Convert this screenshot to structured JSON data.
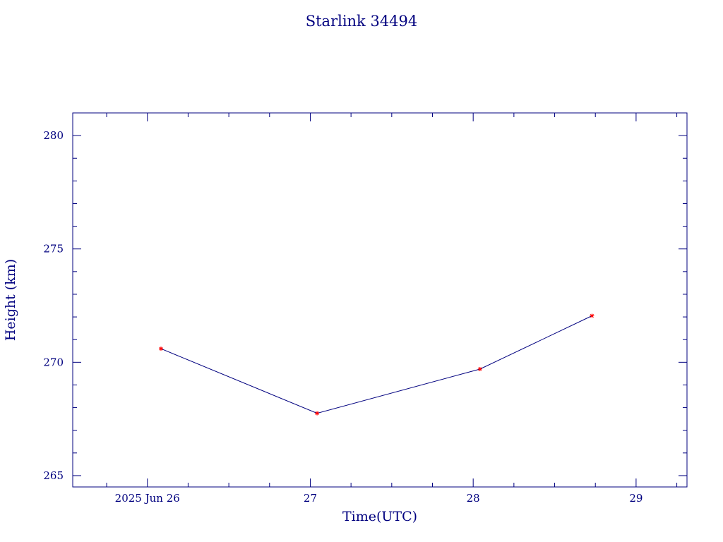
{
  "chart_data": {
    "type": "line",
    "title": "Starlink 34494",
    "xlabel": "Time(UTC)",
    "ylabel": "Height (km)",
    "x": [
      "2025-06-26 02:00",
      "2025-06-27 01:00",
      "2025-06-28 01:00",
      "2025-06-28 17:30"
    ],
    "y": [
      270.6,
      267.75,
      269.7,
      272.05
    ],
    "xlim": [
      "2025-06-25 13:00",
      "2025-06-29 07:30"
    ],
    "ylim": [
      264.5,
      281.0
    ],
    "x_ticks": [
      {
        "value": "2025-06-26 00:00",
        "label": "2025 Jun 26"
      },
      {
        "value": "2025-06-27 00:00",
        "label": "27"
      },
      {
        "value": "2025-06-28 00:00",
        "label": "28"
      },
      {
        "value": "2025-06-29 00:00",
        "label": "29"
      }
    ],
    "y_ticks": [
      265,
      270,
      275,
      280
    ],
    "colors": {
      "axes": "#00007f",
      "line": "#00007f",
      "markers": "#ff0000"
    },
    "grid": false,
    "marker": "asterisk"
  }
}
